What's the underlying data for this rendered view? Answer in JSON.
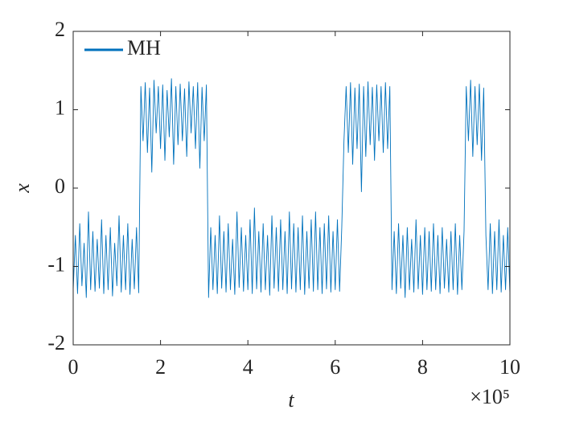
{
  "chart_data": {
    "type": "line",
    "xlabel": "t",
    "ylabel": "x",
    "x_multiplier": "×10⁵",
    "xlim": [
      0,
      10
    ],
    "xticks": [
      0,
      2,
      4,
      6,
      8,
      10
    ],
    "ylim": [
      -2,
      2
    ],
    "yticks": [
      -2,
      -1,
      0,
      1,
      2
    ],
    "legend": "upper left",
    "grid": false,
    "x": [
      0,
      0.05,
      0.1,
      0.15,
      0.2,
      0.25,
      0.3,
      0.35,
      0.4,
      0.45,
      0.5,
      0.55,
      0.6,
      0.65,
      0.7,
      0.75,
      0.8,
      0.85,
      0.9,
      0.95,
      1,
      1.05,
      1.1,
      1.15,
      1.2,
      1.25,
      1.3,
      1.35,
      1.4,
      1.45,
      1.5,
      1.55,
      1.6,
      1.65,
      1.7,
      1.75,
      1.8,
      1.85,
      1.9,
      1.95,
      2,
      2.05,
      2.1,
      2.15,
      2.2,
      2.25,
      2.3,
      2.35,
      2.4,
      2.45,
      2.5,
      2.55,
      2.6,
      2.65,
      2.7,
      2.75,
      2.8,
      2.85,
      2.9,
      2.95,
      3,
      3.05,
      3.1,
      3.15,
      3.2,
      3.25,
      3.3,
      3.35,
      3.4,
      3.45,
      3.5,
      3.55,
      3.6,
      3.65,
      3.7,
      3.75,
      3.8,
      3.85,
      3.9,
      3.95,
      4,
      4.05,
      4.1,
      4.15,
      4.2,
      4.25,
      4.3,
      4.35,
      4.4,
      4.45,
      4.5,
      4.55,
      4.6,
      4.65,
      4.7,
      4.75,
      4.8,
      4.85,
      4.9,
      4.95,
      5,
      5.05,
      5.1,
      5.15,
      5.2,
      5.25,
      5.3,
      5.35,
      5.4,
      5.45,
      5.5,
      5.55,
      5.6,
      5.65,
      5.7,
      5.75,
      5.8,
      5.85,
      5.9,
      5.95,
      6,
      6.05,
      6.1,
      6.15,
      6.2,
      6.25,
      6.3,
      6.35,
      6.4,
      6.45,
      6.5,
      6.55,
      6.6,
      6.65,
      6.7,
      6.75,
      6.8,
      6.85,
      6.9,
      6.95,
      7,
      7.05,
      7.1,
      7.15,
      7.2,
      7.25,
      7.3,
      7.35,
      7.4,
      7.45,
      7.5,
      7.55,
      7.6,
      7.65,
      7.7,
      7.75,
      7.8,
      7.85,
      7.9,
      7.95,
      8,
      8.05,
      8.1,
      8.15,
      8.2,
      8.25,
      8.3,
      8.35,
      8.4,
      8.45,
      8.5,
      8.55,
      8.6,
      8.65,
      8.7,
      8.75,
      8.8,
      8.85,
      8.9,
      8.95,
      9,
      9.05,
      9.1,
      9.15,
      9.2,
      9.25,
      9.3,
      9.35,
      9.4,
      9.45,
      9.5,
      9.55,
      9.6,
      9.65,
      9.7,
      9.75,
      9.8,
      9.85,
      9.9,
      9.95,
      10
    ],
    "series": [
      {
        "name": "MH",
        "color": "#0072BD",
        "values": [
          -1.3,
          -0.6,
          -1.35,
          -0.45,
          -1.25,
          -0.7,
          -1.4,
          -0.3,
          -1.3,
          -0.55,
          -1.32,
          -0.65,
          -1.28,
          -0.4,
          -1.35,
          -0.6,
          -1.3,
          -0.5,
          -1.38,
          -0.7,
          -1.25,
          -0.35,
          -1.33,
          -0.6,
          -1.3,
          -0.45,
          -1.36,
          -0.65,
          -1.29,
          -0.5,
          -1.34,
          1.3,
          0.6,
          1.35,
          0.45,
          1.28,
          0.2,
          1.38,
          0.7,
          1.3,
          0.5,
          1.32,
          0.35,
          1.25,
          0.65,
          1.4,
          0.3,
          1.3,
          0.55,
          1.33,
          0.6,
          1.27,
          0.4,
          1.36,
          0.7,
          1.3,
          0.5,
          1.35,
          0.25,
          1.29,
          0.6,
          1.32,
          -1.4,
          -0.5,
          -1.3,
          -0.6,
          -1.35,
          -0.35,
          -1.28,
          -0.55,
          -1.33,
          -0.45,
          -1.3,
          -0.65,
          -1.36,
          -0.3,
          -1.27,
          -0.5,
          -1.32,
          -0.6,
          -1.3,
          -0.4,
          -1.35,
          -0.25,
          -1.29,
          -0.55,
          -1.33,
          -0.45,
          -1.3,
          -0.6,
          -1.37,
          -0.35,
          -1.28,
          -0.5,
          -1.32,
          -0.4,
          -1.3,
          -0.55,
          -1.35,
          -0.3,
          -1.29,
          -0.45,
          -1.33,
          -0.5,
          -1.3,
          -0.35,
          -1.36,
          -0.55,
          -1.28,
          -0.4,
          -1.32,
          -0.3,
          -1.3,
          -0.5,
          -1.35,
          -0.45,
          -1.29,
          -0.35,
          -1.33,
          -0.55,
          -1.3,
          -0.4,
          -1.32,
          -0.5,
          0.6,
          1.3,
          0.45,
          1.35,
          0.3,
          1.28,
          0.5,
          1.33,
          -0.05,
          1.3,
          0.4,
          1.36,
          0.55,
          1.29,
          0.35,
          1.32,
          0.6,
          1.3,
          0.45,
          1.35,
          0.5,
          1.3,
          -1.3,
          -0.55,
          -1.35,
          -0.45,
          -1.28,
          -0.6,
          -1.4,
          -0.5,
          -1.3,
          -0.65,
          -1.33,
          -0.4,
          -1.29,
          -0.6,
          -1.36,
          -0.5,
          -1.3,
          -0.55,
          -1.32,
          -0.45,
          -1.3,
          -0.6,
          -1.35,
          -0.5,
          -1.28,
          -0.65,
          -1.33,
          -0.55,
          -1.3,
          -0.45,
          -1.36,
          -0.6,
          -1.3,
          -0.55,
          1.3,
          0.6,
          1.38,
          0.4,
          1.3,
          0.55,
          1.33,
          0.35,
          1.28,
          -0.6,
          -1.3,
          -0.45,
          -1.35,
          -0.55,
          -1.3,
          -0.4,
          -1.33,
          -0.6,
          -1.3,
          -0.5,
          -1.35
        ]
      }
    ]
  }
}
